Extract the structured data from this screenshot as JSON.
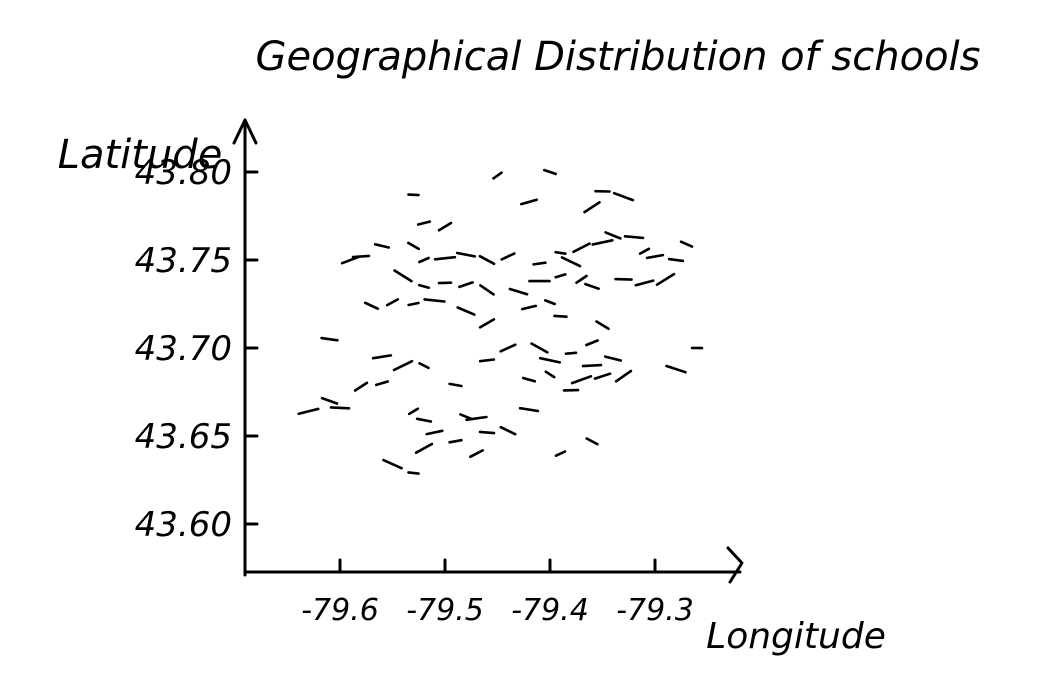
{
  "chart_data": {
    "type": "scatter",
    "title": "Geographical Distribution of schools",
    "xlabel": "Longitude",
    "ylabel": "Latitude",
    "xlim": [
      -79.65,
      -79.25
    ],
    "ylim": [
      43.575,
      43.82
    ],
    "xticks": [
      "-79.6",
      "-79.5",
      "-79.4",
      "-79.3"
    ],
    "yticks": [
      "43.60",
      "43.65",
      "43.70",
      "43.75",
      "43.80"
    ],
    "grid": false,
    "legend": "none",
    "mark_color": "#000000",
    "points": [
      {
        "x": -79.45,
        "y": 43.798
      },
      {
        "x": -79.4,
        "y": 43.8
      },
      {
        "x": -79.35,
        "y": 43.789
      },
      {
        "x": -79.42,
        "y": 43.783
      },
      {
        "x": -79.36,
        "y": 43.78
      },
      {
        "x": -79.33,
        "y": 43.786
      },
      {
        "x": -79.53,
        "y": 43.787
      },
      {
        "x": -79.52,
        "y": 43.771
      },
      {
        "x": -79.5,
        "y": 43.769
      },
      {
        "x": -79.34,
        "y": 43.764
      },
      {
        "x": -79.32,
        "y": 43.763
      },
      {
        "x": -79.35,
        "y": 43.76
      },
      {
        "x": -79.31,
        "y": 43.755
      },
      {
        "x": -79.27,
        "y": 43.759
      },
      {
        "x": -79.28,
        "y": 43.75
      },
      {
        "x": -79.3,
        "y": 43.752
      },
      {
        "x": -79.37,
        "y": 43.757
      },
      {
        "x": -79.38,
        "y": 43.749
      },
      {
        "x": -79.39,
        "y": 43.754
      },
      {
        "x": -79.41,
        "y": 43.748
      },
      {
        "x": -79.44,
        "y": 43.752
      },
      {
        "x": -79.46,
        "y": 43.75
      },
      {
        "x": -79.48,
        "y": 43.753
      },
      {
        "x": -79.5,
        "y": 43.751
      },
      {
        "x": -79.52,
        "y": 43.75
      },
      {
        "x": -79.53,
        "y": 43.758
      },
      {
        "x": -79.56,
        "y": 43.758
      },
      {
        "x": -79.58,
        "y": 43.752
      },
      {
        "x": -79.59,
        "y": 43.75
      },
      {
        "x": -79.54,
        "y": 43.741
      },
      {
        "x": -79.52,
        "y": 43.735
      },
      {
        "x": -79.5,
        "y": 43.737
      },
      {
        "x": -79.48,
        "y": 43.736
      },
      {
        "x": -79.46,
        "y": 43.733
      },
      {
        "x": -79.43,
        "y": 43.732
      },
      {
        "x": -79.41,
        "y": 43.738
      },
      {
        "x": -79.39,
        "y": 43.741
      },
      {
        "x": -79.37,
        "y": 43.739
      },
      {
        "x": -79.36,
        "y": 43.735
      },
      {
        "x": -79.33,
        "y": 43.739
      },
      {
        "x": -79.31,
        "y": 43.737
      },
      {
        "x": -79.29,
        "y": 43.739
      },
      {
        "x": -79.4,
        "y": 43.726
      },
      {
        "x": -79.39,
        "y": 43.718
      },
      {
        "x": -79.42,
        "y": 43.723
      },
      {
        "x": -79.46,
        "y": 43.714
      },
      {
        "x": -79.48,
        "y": 43.721
      },
      {
        "x": -79.51,
        "y": 43.727
      },
      {
        "x": -79.53,
        "y": 43.725
      },
      {
        "x": -79.55,
        "y": 43.726
      },
      {
        "x": -79.57,
        "y": 43.724
      },
      {
        "x": -79.61,
        "y": 43.705
      },
      {
        "x": -79.56,
        "y": 43.695
      },
      {
        "x": -79.54,
        "y": 43.69
      },
      {
        "x": -79.52,
        "y": 43.69
      },
      {
        "x": -79.49,
        "y": 43.679
      },
      {
        "x": -79.46,
        "y": 43.693
      },
      {
        "x": -79.44,
        "y": 43.7
      },
      {
        "x": -79.41,
        "y": 43.7
      },
      {
        "x": -79.4,
        "y": 43.693
      },
      {
        "x": -79.38,
        "y": 43.697
      },
      {
        "x": -79.36,
        "y": 43.703
      },
      {
        "x": -79.35,
        "y": 43.713
      },
      {
        "x": -79.34,
        "y": 43.694
      },
      {
        "x": -79.36,
        "y": 43.69
      },
      {
        "x": -79.37,
        "y": 43.682
      },
      {
        "x": -79.4,
        "y": 43.685
      },
      {
        "x": -79.42,
        "y": 43.682
      },
      {
        "x": -79.38,
        "y": 43.676
      },
      {
        "x": -79.35,
        "y": 43.684
      },
      {
        "x": -79.33,
        "y": 43.684
      },
      {
        "x": -79.28,
        "y": 43.688
      },
      {
        "x": -79.26,
        "y": 43.7
      },
      {
        "x": -79.56,
        "y": 43.68
      },
      {
        "x": -79.58,
        "y": 43.678
      },
      {
        "x": -79.61,
        "y": 43.67
      },
      {
        "x": -79.6,
        "y": 43.666
      },
      {
        "x": -79.63,
        "y": 43.664
      },
      {
        "x": -79.53,
        "y": 43.664
      },
      {
        "x": -79.48,
        "y": 43.661
      },
      {
        "x": -79.46,
        "y": 43.652
      },
      {
        "x": -79.51,
        "y": 43.652
      },
      {
        "x": -79.52,
        "y": 43.643
      },
      {
        "x": -79.55,
        "y": 43.634
      },
      {
        "x": -79.53,
        "y": 43.629
      },
      {
        "x": -79.49,
        "y": 43.647
      },
      {
        "x": -79.47,
        "y": 43.64
      },
      {
        "x": -79.44,
        "y": 43.653
      },
      {
        "x": -79.42,
        "y": 43.665
      },
      {
        "x": -79.47,
        "y": 43.66
      },
      {
        "x": -79.39,
        "y": 43.64
      },
      {
        "x": -79.36,
        "y": 43.647
      },
      {
        "x": -79.52,
        "y": 43.659
      }
    ]
  }
}
